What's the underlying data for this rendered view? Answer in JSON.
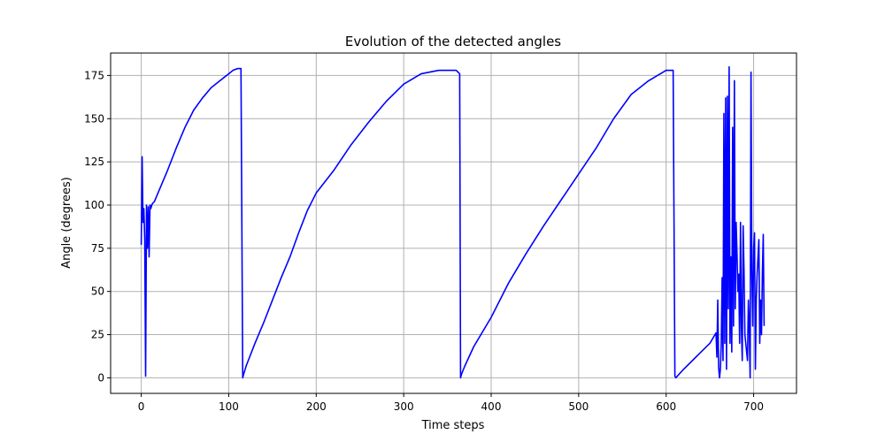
{
  "chart_data": {
    "type": "line",
    "title": "Evolution of the detected angles",
    "xlabel": "Time steps",
    "ylabel": "Angle (degrees)",
    "xlim": [
      -35,
      749
    ],
    "ylim": [
      -9,
      188
    ],
    "xticks": [
      0,
      100,
      200,
      300,
      400,
      500,
      600,
      700
    ],
    "yticks": [
      0,
      25,
      50,
      75,
      100,
      125,
      150,
      175
    ],
    "grid": true,
    "series": [
      {
        "color": "#0000ff",
        "x": [
          0,
          1,
          2,
          3,
          4,
          5,
          6,
          7,
          8,
          9,
          10,
          11,
          12,
          13,
          15,
          20,
          30,
          40,
          50,
          60,
          70,
          80,
          90,
          100,
          105,
          110,
          114,
          116,
          117,
          120,
          130,
          140,
          150,
          160,
          170,
          180,
          190,
          200,
          220,
          240,
          260,
          280,
          300,
          320,
          340,
          360,
          364,
          365,
          366,
          370,
          380,
          400,
          420,
          440,
          460,
          480,
          500,
          520,
          540,
          560,
          580,
          600,
          608,
          610,
          611,
          620,
          630,
          640,
          650,
          657,
          658,
          659,
          660,
          661,
          662,
          663,
          664,
          665,
          666,
          667,
          668,
          669,
          670,
          671,
          672,
          673,
          674,
          675,
          676,
          677,
          678,
          679,
          680,
          681,
          682,
          683,
          684,
          685,
          686,
          687,
          688,
          689,
          690,
          691,
          692,
          693,
          694,
          695,
          696,
          697,
          698,
          699,
          700,
          701,
          702,
          703,
          704,
          705,
          706,
          707,
          708,
          709,
          710,
          711,
          712
        ],
        "y": [
          77,
          128,
          90,
          98,
          80,
          1,
          100,
          75,
          99,
          70,
          100,
          98,
          100,
          101,
          102,
          108,
          120,
          133,
          145,
          155,
          162,
          168,
          172,
          176,
          178,
          179,
          179,
          0,
          2,
          7,
          20,
          32,
          45,
          58,
          70,
          84,
          97,
          107,
          120,
          135,
          148,
          160,
          170,
          176,
          178,
          178,
          176,
          0,
          2,
          7,
          18,
          35,
          55,
          72,
          88,
          103,
          118,
          133,
          150,
          164,
          172,
          178,
          178,
          1,
          0,
          5,
          10,
          15,
          20,
          26,
          12,
          45,
          6,
          0,
          5,
          20,
          58,
          10,
          153,
          20,
          162,
          5,
          163,
          40,
          180,
          20,
          70,
          15,
          145,
          30,
          172,
          40,
          90,
          72,
          50,
          60,
          20,
          90,
          30,
          10,
          88,
          62,
          25,
          20,
          15,
          10,
          45,
          30,
          0,
          177,
          60,
          30,
          75,
          84,
          5,
          45,
          60,
          70,
          80,
          20,
          45,
          25,
          60,
          83,
          30
        ]
      }
    ]
  }
}
